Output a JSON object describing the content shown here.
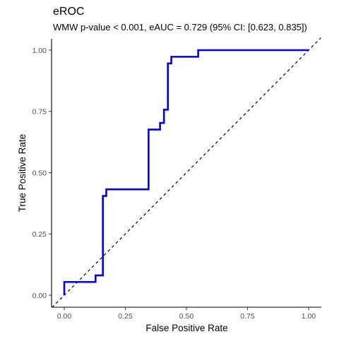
{
  "chart_data": {
    "type": "line",
    "title": "eROC",
    "subtitle": "WMW p-value < 0.001, eAUC = 0.729 (95% CI: [0.623, 0.835])",
    "xlabel": "False Positive Rate",
    "ylabel": "True Positive Rate",
    "xlim": [
      0,
      1
    ],
    "ylim": [
      0,
      1
    ],
    "x_ticks": [
      "0.00",
      "0.25",
      "0.50",
      "0.75",
      "1.00"
    ],
    "y_ticks": [
      "0.00",
      "0.25",
      "0.50",
      "0.75",
      "1.00"
    ],
    "grid": false,
    "legend": "none",
    "series": [
      {
        "color": "#0000ee",
        "style": "step",
        "x": [
          0.0,
          0.0,
          0.128,
          0.128,
          0.158,
          0.158,
          0.172,
          0.172,
          0.345,
          0.345,
          0.392,
          0.392,
          0.408,
          0.408,
          0.424,
          0.424,
          0.438,
          0.438,
          0.548,
          0.548,
          1.0
        ],
        "y": [
          0.0,
          0.054,
          0.054,
          0.081,
          0.081,
          0.405,
          0.405,
          0.432,
          0.432,
          0.676,
          0.676,
          0.703,
          0.703,
          0.757,
          0.757,
          0.946,
          0.946,
          0.973,
          0.973,
          1.0,
          1.0
        ]
      },
      {
        "color": "#000000",
        "style": "dashed",
        "x": [
          0,
          1
        ],
        "y": [
          0,
          1
        ]
      }
    ]
  }
}
